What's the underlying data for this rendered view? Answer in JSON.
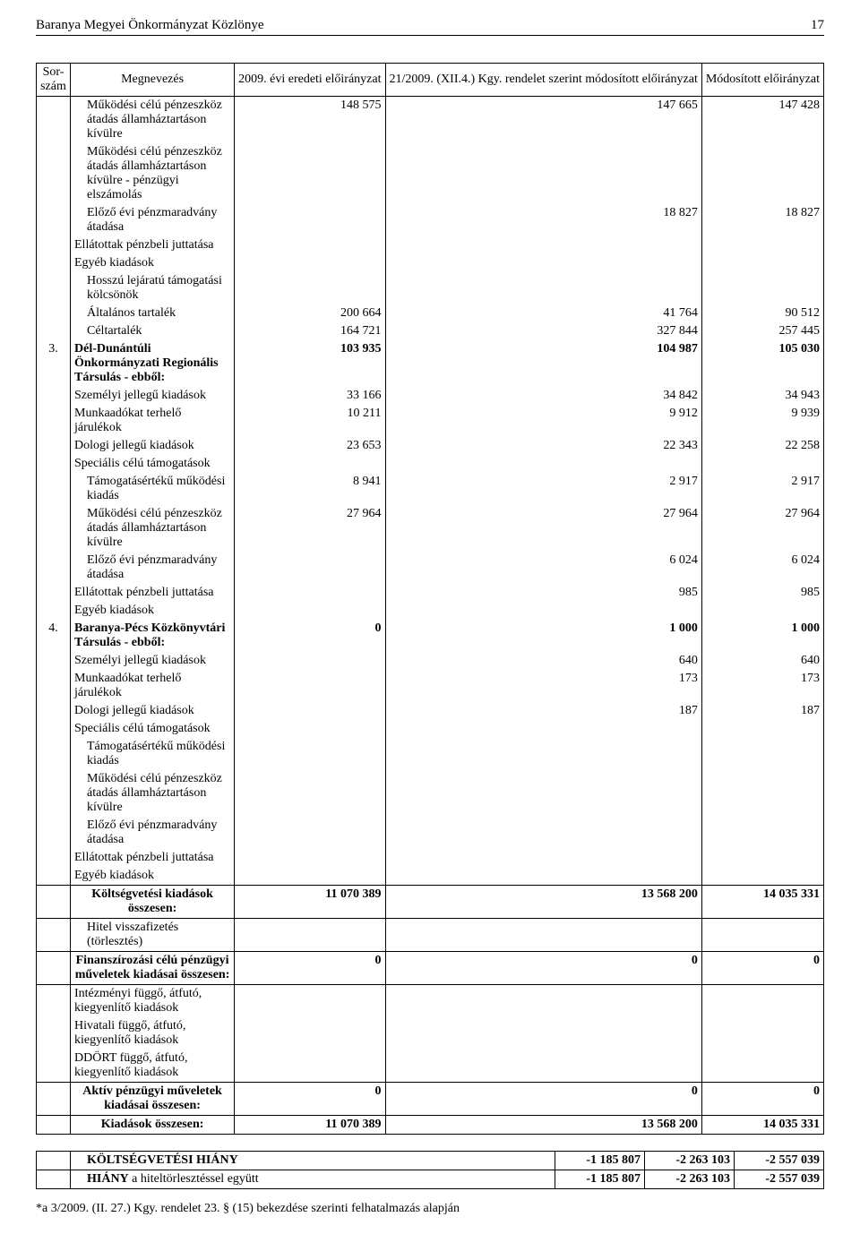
{
  "header": {
    "title": "Baranya Megyei Önkormányzat Közlönye",
    "page": "17"
  },
  "columns": {
    "sor": "Sor-szám",
    "meg": "Megnevezés",
    "c1": "2009. évi eredeti előirányzat",
    "c2": "21/2009. (XII.4.) Kgy. rendelet szerint módosított előirányzat",
    "c3": "Módosított előirányzat"
  },
  "rows": [
    {
      "sor": "",
      "meg": "Működési célú pénzeszköz átadás államháztartáson kívülre",
      "ind": 1,
      "bold": false,
      "c1": "148 575",
      "c2": "147 665",
      "c3": "147 428"
    },
    {
      "sor": "",
      "meg": "Működési célú pénzeszköz átadás államháztartáson kívülre - pénzügyi elszámolás",
      "ind": 1,
      "bold": false,
      "c1": "",
      "c2": "",
      "c3": ""
    },
    {
      "sor": "",
      "meg": "Előző évi pénzmaradvány átadása",
      "ind": 1,
      "bold": false,
      "c1": "",
      "c2": "18 827",
      "c3": "18 827"
    },
    {
      "sor": "",
      "meg": "Ellátottak pénzbeli juttatása",
      "ind": 0,
      "bold": false,
      "c1": "",
      "c2": "",
      "c3": ""
    },
    {
      "sor": "",
      "meg": "Egyéb kiadások",
      "ind": 0,
      "bold": false,
      "c1": "",
      "c2": "",
      "c3": ""
    },
    {
      "sor": "",
      "meg": "Hosszú lejáratú támogatási kölcsönök",
      "ind": 1,
      "bold": false,
      "c1": "",
      "c2": "",
      "c3": ""
    },
    {
      "sor": "",
      "meg": "Általános tartalék",
      "ind": 1,
      "bold": false,
      "c1": "200 664",
      "c2": "41 764",
      "c3": "90 512"
    },
    {
      "sor": "",
      "meg": "Céltartalék",
      "ind": 1,
      "bold": false,
      "c1": "164 721",
      "c2": "327 844",
      "c3": "257 445"
    },
    {
      "sor": "3.",
      "meg": "Dél-Dunántúli Önkormányzati Regionális Társulás - ebből:",
      "ind": 0,
      "bold": true,
      "c1": "103 935",
      "c2": "104 987",
      "c3": "105 030"
    },
    {
      "sor": "",
      "meg": "Személyi jellegű kiadások",
      "ind": 0,
      "bold": false,
      "c1": "33 166",
      "c2": "34 842",
      "c3": "34 943"
    },
    {
      "sor": "",
      "meg": "Munkaadókat terhelő járulékok",
      "ind": 0,
      "bold": false,
      "c1": "10 211",
      "c2": "9 912",
      "c3": "9 939"
    },
    {
      "sor": "",
      "meg": "Dologi jellegű kiadások",
      "ind": 0,
      "bold": false,
      "c1": "23 653",
      "c2": "22 343",
      "c3": "22 258"
    },
    {
      "sor": "",
      "meg": "Speciális célú támogatások",
      "ind": 0,
      "bold": false,
      "c1": "",
      "c2": "",
      "c3": ""
    },
    {
      "sor": "",
      "meg": "Támogatásértékű működési kiadás",
      "ind": 1,
      "bold": false,
      "c1": "8 941",
      "c2": "2 917",
      "c3": "2 917"
    },
    {
      "sor": "",
      "meg": "Működési célú pénzeszköz átadás államháztartáson kívülre",
      "ind": 1,
      "bold": false,
      "c1": "27 964",
      "c2": "27 964",
      "c3": "27 964"
    },
    {
      "sor": "",
      "meg": "Előző évi pénzmaradvány átadása",
      "ind": 1,
      "bold": false,
      "c1": "",
      "c2": "6 024",
      "c3": "6 024"
    },
    {
      "sor": "",
      "meg": "Ellátottak pénzbeli juttatása",
      "ind": 0,
      "bold": false,
      "c1": "",
      "c2": "985",
      "c3": "985"
    },
    {
      "sor": "",
      "meg": "Egyéb kiadások",
      "ind": 0,
      "bold": false,
      "c1": "",
      "c2": "",
      "c3": ""
    },
    {
      "sor": "4.",
      "meg": "Baranya-Pécs Közkönyvtári Társulás - ebből:",
      "ind": 0,
      "bold": true,
      "c1": "0",
      "c2": "1 000",
      "c3": "1 000"
    },
    {
      "sor": "",
      "meg": "Személyi jellegű kiadások",
      "ind": 0,
      "bold": false,
      "c1": "",
      "c2": "640",
      "c3": "640"
    },
    {
      "sor": "",
      "meg": "Munkaadókat terhelő járulékok",
      "ind": 0,
      "bold": false,
      "c1": "",
      "c2": "173",
      "c3": "173"
    },
    {
      "sor": "",
      "meg": "Dologi jellegű kiadások",
      "ind": 0,
      "bold": false,
      "c1": "",
      "c2": "187",
      "c3": "187"
    },
    {
      "sor": "",
      "meg": "Speciális célú támogatások",
      "ind": 0,
      "bold": false,
      "c1": "",
      "c2": "",
      "c3": ""
    },
    {
      "sor": "",
      "meg": "Támogatásértékű működési kiadás",
      "ind": 1,
      "bold": false,
      "c1": "",
      "c2": "",
      "c3": ""
    },
    {
      "sor": "",
      "meg": "Működési célú pénzeszköz átadás államháztartáson kívülre",
      "ind": 1,
      "bold": false,
      "c1": "",
      "c2": "",
      "c3": ""
    },
    {
      "sor": "",
      "meg": "Előző évi pénzmaradvány átadása",
      "ind": 1,
      "bold": false,
      "c1": "",
      "c2": "",
      "c3": ""
    },
    {
      "sor": "",
      "meg": "Ellátottak pénzbeli juttatása",
      "ind": 0,
      "bold": false,
      "c1": "",
      "c2": "",
      "c3": ""
    },
    {
      "sor": "",
      "meg": "Egyéb kiadások",
      "ind": 0,
      "bold": false,
      "c1": "",
      "c2": "",
      "c3": ""
    }
  ],
  "summary": [
    {
      "meg": "Költségvetési kiadások összesen:",
      "bold": true,
      "center": true,
      "c1": "11 070 389",
      "c2": "13 568 200",
      "c3": "14 035 331",
      "border": "both"
    },
    {
      "meg": "Hitel visszafizetés (törlesztés)",
      "bold": false,
      "center": false,
      "ind": 1,
      "c1": "",
      "c2": "",
      "c3": "",
      "border": "none"
    },
    {
      "meg": "Finanszírozási célú pénzügyi műveletek kiadásai összesen:",
      "bold": true,
      "center": true,
      "c1": "0",
      "c2": "0",
      "c3": "0",
      "border": "both"
    },
    {
      "meg": "Intézményi függő, átfutó, kiegyenlítő kiadások",
      "bold": false,
      "center": false,
      "c1": "",
      "c2": "",
      "c3": "",
      "border": "none"
    },
    {
      "meg": "Hivatali függő, átfutó, kiegyenlítő kiadások",
      "bold": false,
      "center": false,
      "c1": "",
      "c2": "",
      "c3": "",
      "border": "none"
    },
    {
      "meg": "DDÖRT függő, átfutó, kiegyenlítő kiadások",
      "bold": false,
      "center": false,
      "c1": "",
      "c2": "",
      "c3": "",
      "border": "none"
    },
    {
      "meg": "Aktív pénzügyi műveletek kiadásai összesen:",
      "bold": true,
      "center": true,
      "c1": "0",
      "c2": "0",
      "c3": "0",
      "border": "both"
    },
    {
      "meg": "Kiadások összesen:",
      "bold": true,
      "center": true,
      "c1": "11 070 389",
      "c2": "13 568 200",
      "c3": "14 035 331",
      "border": "both"
    }
  ],
  "deficit": [
    {
      "label": "KÖLTSÉGVETÉSI HIÁNY",
      "bold": true,
      "c1": "-1 185 807",
      "c2": "-2 263 103",
      "c3": "-2 557 039"
    },
    {
      "label": "HIÁNY a hiteltörlesztéssel együtt",
      "bold": true,
      "c1": "-1 185 807",
      "c2": "-2 263 103",
      "c3": "-2 557 039"
    }
  ],
  "footnote": "*a 3/2009. (II. 27.) Kgy. rendelet 23. § (15) bekezdése szerinti felhatalmazás alapján"
}
